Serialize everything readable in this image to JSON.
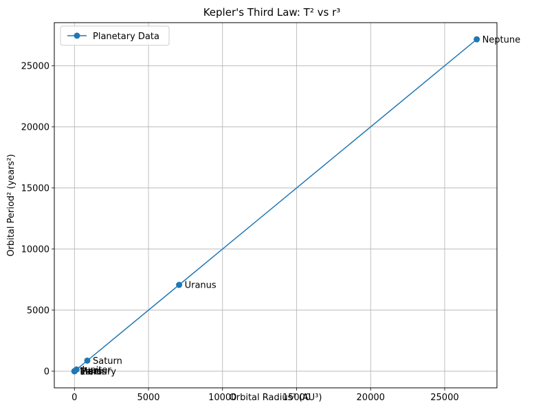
{
  "chart_data": {
    "type": "line",
    "title": "Kepler's Third Law: T² vs r³",
    "xlabel": "Orbital Radius³ (AU³)",
    "ylabel": "Orbital Period² (years²)",
    "xlim": [
      -1360,
      28530
    ],
    "ylim": [
      -1360,
      28530
    ],
    "xticks": [
      0,
      5000,
      10000,
      15000,
      20000,
      25000
    ],
    "yticks": [
      0,
      5000,
      10000,
      15000,
      20000,
      25000
    ],
    "grid": true,
    "legend": {
      "position": "top-left"
    },
    "series": [
      {
        "name": "Planetary Data",
        "color": "#1f77b4",
        "marker": "circle",
        "points": [
          {
            "label": "Mercury",
            "x": 0.06,
            "y": 0.06
          },
          {
            "label": "Venus",
            "x": 0.38,
            "y": 0.38
          },
          {
            "label": "Earth",
            "x": 1.0,
            "y": 1.0
          },
          {
            "label": "Mars",
            "x": 3.5,
            "y": 3.5
          },
          {
            "label": "Jupiter",
            "x": 140.6,
            "y": 140.7
          },
          {
            "label": "Saturn",
            "x": 867.7,
            "y": 867.6
          },
          {
            "label": "Uranus",
            "x": 7068,
            "y": 7067
          },
          {
            "label": "Neptune",
            "x": 27165,
            "y": 27165
          }
        ]
      }
    ]
  }
}
